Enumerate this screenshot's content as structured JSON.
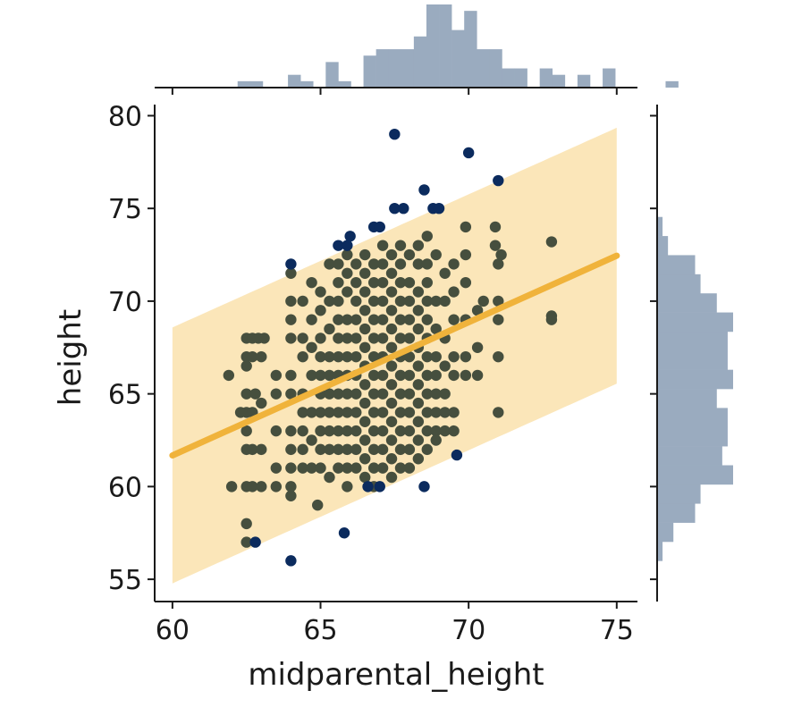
{
  "chart_data": {
    "type": "scatter",
    "subtype": "jointplot-with-regression",
    "xlabel": "midparental_height",
    "ylabel": "height",
    "xlim": [
      59.4,
      75.7
    ],
    "ylim": [
      53.8,
      80.6
    ],
    "xticks": [
      60,
      65,
      70,
      75
    ],
    "yticks": [
      55,
      60,
      65,
      70,
      75,
      80
    ],
    "grid": false,
    "colors": {
      "inside_band_points": "#464f3e",
      "outlier_points": "#0b2b5e",
      "regression_line": "#f0b33b",
      "prediction_band": "#fbe6b9",
      "marginal_hist": "#9aabbf"
    },
    "regression": {
      "slope": 0.718,
      "intercept": 18.6,
      "x_range": [
        60,
        75
      ],
      "band_half_width": 6.9
    },
    "outliers": [
      {
        "x": 67.5,
        "y": 79.0
      },
      {
        "x": 70.0,
        "y": 78.0
      },
      {
        "x": 71.0,
        "y": 76.5
      },
      {
        "x": 68.5,
        "y": 76.0
      },
      {
        "x": 67.5,
        "y": 75.0
      },
      {
        "x": 67.8,
        "y": 75.0
      },
      {
        "x": 68.8,
        "y": 75.0
      },
      {
        "x": 69.0,
        "y": 75.0
      },
      {
        "x": 66.0,
        "y": 73.5
      },
      {
        "x": 65.6,
        "y": 73.0
      },
      {
        "x": 65.9,
        "y": 73.0
      },
      {
        "x": 66.8,
        "y": 74.0
      },
      {
        "x": 67.0,
        "y": 74.0
      },
      {
        "x": 64.0,
        "y": 72.0
      },
      {
        "x": 64.0,
        "y": 56.0
      },
      {
        "x": 65.8,
        "y": 57.5
      },
      {
        "x": 62.8,
        "y": 57.0
      },
      {
        "x": 66.6,
        "y": 60.0
      },
      {
        "x": 67.0,
        "y": 60.0
      },
      {
        "x": 68.5,
        "y": 60.0
      },
      {
        "x": 69.6,
        "y": 61.7
      }
    ],
    "inliers": [
      {
        "x": 61.9,
        "y": 66.0
      },
      {
        "x": 62.0,
        "y": 60.0
      },
      {
        "x": 62.5,
        "y": 68.0
      },
      {
        "x": 62.7,
        "y": 68.0
      },
      {
        "x": 62.9,
        "y": 68.0
      },
      {
        "x": 63.1,
        "y": 68.0
      },
      {
        "x": 62.5,
        "y": 67.0
      },
      {
        "x": 62.7,
        "y": 67.0
      },
      {
        "x": 63.0,
        "y": 67.0
      },
      {
        "x": 62.5,
        "y": 66.5
      },
      {
        "x": 62.5,
        "y": 65.0
      },
      {
        "x": 62.8,
        "y": 65.0
      },
      {
        "x": 62.5,
        "y": 64.0
      },
      {
        "x": 62.7,
        "y": 64.0
      },
      {
        "x": 62.5,
        "y": 63.0
      },
      {
        "x": 62.5,
        "y": 62.0
      },
      {
        "x": 62.7,
        "y": 62.0
      },
      {
        "x": 62.5,
        "y": 60.0
      },
      {
        "x": 62.7,
        "y": 60.0
      },
      {
        "x": 62.5,
        "y": 58.0
      },
      {
        "x": 62.5,
        "y": 57.0
      },
      {
        "x": 63.0,
        "y": 64.5
      },
      {
        "x": 63.0,
        "y": 62.0
      },
      {
        "x": 63.0,
        "y": 60.0
      },
      {
        "x": 63.5,
        "y": 66.0
      },
      {
        "x": 63.5,
        "y": 65.0
      },
      {
        "x": 63.5,
        "y": 63.0
      },
      {
        "x": 63.5,
        "y": 61.0
      },
      {
        "x": 63.5,
        "y": 60.0
      },
      {
        "x": 64.0,
        "y": 71.5
      },
      {
        "x": 64.0,
        "y": 70.0
      },
      {
        "x": 64.0,
        "y": 69.0
      },
      {
        "x": 64.0,
        "y": 68.0
      },
      {
        "x": 64.0,
        "y": 66.0
      },
      {
        "x": 64.0,
        "y": 65.0
      },
      {
        "x": 64.0,
        "y": 63.0
      },
      {
        "x": 64.0,
        "y": 62.0
      },
      {
        "x": 64.0,
        "y": 61.0
      },
      {
        "x": 64.0,
        "y": 60.0
      },
      {
        "x": 64.0,
        "y": 59.5
      },
      {
        "x": 64.4,
        "y": 70.0
      },
      {
        "x": 64.4,
        "y": 68.0
      },
      {
        "x": 64.4,
        "y": 67.0
      },
      {
        "x": 64.4,
        "y": 65.0
      },
      {
        "x": 64.4,
        "y": 64.0
      },
      {
        "x": 64.4,
        "y": 63.0
      },
      {
        "x": 64.4,
        "y": 62.0
      },
      {
        "x": 64.4,
        "y": 61.0
      },
      {
        "x": 64.7,
        "y": 71.0
      },
      {
        "x": 64.7,
        "y": 69.0
      },
      {
        "x": 64.7,
        "y": 67.5
      },
      {
        "x": 64.7,
        "y": 66.0
      },
      {
        "x": 64.7,
        "y": 64.0
      },
      {
        "x": 64.7,
        "y": 62.5
      },
      {
        "x": 64.7,
        "y": 61.0
      },
      {
        "x": 65.0,
        "y": 70.5
      },
      {
        "x": 65.0,
        "y": 69.5
      },
      {
        "x": 65.0,
        "y": 68.0
      },
      {
        "x": 65.0,
        "y": 67.0
      },
      {
        "x": 65.0,
        "y": 66.0
      },
      {
        "x": 65.0,
        "y": 65.0
      },
      {
        "x": 65.0,
        "y": 64.0
      },
      {
        "x": 65.0,
        "y": 63.0
      },
      {
        "x": 65.0,
        "y": 62.0
      },
      {
        "x": 65.0,
        "y": 61.0
      },
      {
        "x": 64.9,
        "y": 59.0
      },
      {
        "x": 65.3,
        "y": 72.0
      },
      {
        "x": 65.3,
        "y": 70.0
      },
      {
        "x": 65.3,
        "y": 68.5
      },
      {
        "x": 65.3,
        "y": 67.0
      },
      {
        "x": 65.3,
        "y": 66.0
      },
      {
        "x": 65.3,
        "y": 65.0
      },
      {
        "x": 65.3,
        "y": 64.0
      },
      {
        "x": 65.3,
        "y": 63.0
      },
      {
        "x": 65.3,
        "y": 62.0
      },
      {
        "x": 65.3,
        "y": 60.5
      },
      {
        "x": 65.6,
        "y": 72.0
      },
      {
        "x": 65.6,
        "y": 71.0
      },
      {
        "x": 65.6,
        "y": 70.0
      },
      {
        "x": 65.6,
        "y": 69.0
      },
      {
        "x": 65.6,
        "y": 68.0
      },
      {
        "x": 65.6,
        "y": 67.0
      },
      {
        "x": 65.6,
        "y": 66.0
      },
      {
        "x": 65.6,
        "y": 65.0
      },
      {
        "x": 65.6,
        "y": 64.0
      },
      {
        "x": 65.6,
        "y": 63.0
      },
      {
        "x": 65.6,
        "y": 62.0
      },
      {
        "x": 65.6,
        "y": 61.0
      },
      {
        "x": 65.9,
        "y": 72.5
      },
      {
        "x": 65.9,
        "y": 71.5
      },
      {
        "x": 65.9,
        "y": 70.5
      },
      {
        "x": 65.9,
        "y": 69.0
      },
      {
        "x": 65.9,
        "y": 68.0
      },
      {
        "x": 65.9,
        "y": 67.0
      },
      {
        "x": 65.9,
        "y": 66.0
      },
      {
        "x": 65.9,
        "y": 65.0
      },
      {
        "x": 65.9,
        "y": 64.0
      },
      {
        "x": 65.9,
        "y": 63.0
      },
      {
        "x": 65.9,
        "y": 62.0
      },
      {
        "x": 65.9,
        "y": 61.0
      },
      {
        "x": 65.9,
        "y": 60.0
      },
      {
        "x": 66.2,
        "y": 72.0
      },
      {
        "x": 66.2,
        "y": 71.0
      },
      {
        "x": 66.2,
        "y": 70.0
      },
      {
        "x": 66.2,
        "y": 69.0
      },
      {
        "x": 66.2,
        "y": 68.0
      },
      {
        "x": 66.2,
        "y": 67.0
      },
      {
        "x": 66.2,
        "y": 66.0
      },
      {
        "x": 66.2,
        "y": 65.0
      },
      {
        "x": 66.2,
        "y": 64.0
      },
      {
        "x": 66.2,
        "y": 63.0
      },
      {
        "x": 66.2,
        "y": 62.0
      },
      {
        "x": 66.2,
        "y": 61.0
      },
      {
        "x": 66.5,
        "y": 72.5
      },
      {
        "x": 66.5,
        "y": 71.5
      },
      {
        "x": 66.5,
        "y": 70.5
      },
      {
        "x": 66.5,
        "y": 69.5
      },
      {
        "x": 66.5,
        "y": 68.5
      },
      {
        "x": 66.5,
        "y": 67.5
      },
      {
        "x": 66.5,
        "y": 66.5
      },
      {
        "x": 66.5,
        "y": 65.5
      },
      {
        "x": 66.5,
        "y": 64.5
      },
      {
        "x": 66.5,
        "y": 63.5
      },
      {
        "x": 66.5,
        "y": 62.5
      },
      {
        "x": 66.5,
        "y": 61.5
      },
      {
        "x": 66.5,
        "y": 60.5
      },
      {
        "x": 66.8,
        "y": 72.0
      },
      {
        "x": 66.8,
        "y": 71.0
      },
      {
        "x": 66.8,
        "y": 70.0
      },
      {
        "x": 66.8,
        "y": 69.0
      },
      {
        "x": 66.8,
        "y": 68.0
      },
      {
        "x": 66.8,
        "y": 67.0
      },
      {
        "x": 66.8,
        "y": 66.0
      },
      {
        "x": 66.8,
        "y": 65.0
      },
      {
        "x": 66.8,
        "y": 64.0
      },
      {
        "x": 66.8,
        "y": 63.0
      },
      {
        "x": 66.8,
        "y": 62.0
      },
      {
        "x": 66.8,
        "y": 61.0
      },
      {
        "x": 66.8,
        "y": 60.0
      },
      {
        "x": 67.1,
        "y": 73.0
      },
      {
        "x": 67.1,
        "y": 72.0
      },
      {
        "x": 67.1,
        "y": 71.0
      },
      {
        "x": 67.1,
        "y": 70.0
      },
      {
        "x": 67.1,
        "y": 69.0
      },
      {
        "x": 67.1,
        "y": 68.0
      },
      {
        "x": 67.1,
        "y": 67.0
      },
      {
        "x": 67.1,
        "y": 66.0
      },
      {
        "x": 67.1,
        "y": 65.0
      },
      {
        "x": 67.1,
        "y": 64.0
      },
      {
        "x": 67.1,
        "y": 63.0
      },
      {
        "x": 67.1,
        "y": 62.0
      },
      {
        "x": 67.1,
        "y": 61.0
      },
      {
        "x": 67.4,
        "y": 72.5
      },
      {
        "x": 67.4,
        "y": 71.5
      },
      {
        "x": 67.4,
        "y": 70.5
      },
      {
        "x": 67.4,
        "y": 69.5
      },
      {
        "x": 67.4,
        "y": 68.5
      },
      {
        "x": 67.4,
        "y": 67.5
      },
      {
        "x": 67.4,
        "y": 66.5
      },
      {
        "x": 67.4,
        "y": 65.5
      },
      {
        "x": 67.4,
        "y": 64.5
      },
      {
        "x": 67.4,
        "y": 63.5
      },
      {
        "x": 67.4,
        "y": 62.5
      },
      {
        "x": 67.4,
        "y": 61.5
      },
      {
        "x": 67.4,
        "y": 60.5
      },
      {
        "x": 67.7,
        "y": 73.0
      },
      {
        "x": 67.7,
        "y": 72.0
      },
      {
        "x": 67.7,
        "y": 71.0
      },
      {
        "x": 67.7,
        "y": 70.0
      },
      {
        "x": 67.7,
        "y": 69.0
      },
      {
        "x": 67.7,
        "y": 68.0
      },
      {
        "x": 67.7,
        "y": 67.0
      },
      {
        "x": 67.7,
        "y": 66.0
      },
      {
        "x": 67.7,
        "y": 65.0
      },
      {
        "x": 67.7,
        "y": 64.0
      },
      {
        "x": 67.7,
        "y": 63.0
      },
      {
        "x": 67.7,
        "y": 62.0
      },
      {
        "x": 67.7,
        "y": 61.0
      },
      {
        "x": 68.0,
        "y": 72.5
      },
      {
        "x": 68.0,
        "y": 71.0
      },
      {
        "x": 68.0,
        "y": 70.0
      },
      {
        "x": 68.0,
        "y": 69.0
      },
      {
        "x": 68.0,
        "y": 68.0
      },
      {
        "x": 68.0,
        "y": 67.0
      },
      {
        "x": 68.0,
        "y": 66.0
      },
      {
        "x": 68.0,
        "y": 65.0
      },
      {
        "x": 68.0,
        "y": 64.0
      },
      {
        "x": 68.0,
        "y": 63.0
      },
      {
        "x": 68.0,
        "y": 62.0
      },
      {
        "x": 68.0,
        "y": 61.0
      },
      {
        "x": 68.3,
        "y": 73.0
      },
      {
        "x": 68.3,
        "y": 72.0
      },
      {
        "x": 68.3,
        "y": 70.5
      },
      {
        "x": 68.3,
        "y": 69.5
      },
      {
        "x": 68.3,
        "y": 68.5
      },
      {
        "x": 68.3,
        "y": 67.5
      },
      {
        "x": 68.3,
        "y": 66.5
      },
      {
        "x": 68.3,
        "y": 65.5
      },
      {
        "x": 68.3,
        "y": 64.5
      },
      {
        "x": 68.3,
        "y": 63.5
      },
      {
        "x": 68.3,
        "y": 62.5
      },
      {
        "x": 68.3,
        "y": 61.5
      },
      {
        "x": 68.6,
        "y": 73.5
      },
      {
        "x": 68.6,
        "y": 72.0
      },
      {
        "x": 68.6,
        "y": 71.0
      },
      {
        "x": 68.6,
        "y": 70.0
      },
      {
        "x": 68.6,
        "y": 69.0
      },
      {
        "x": 68.6,
        "y": 68.0
      },
      {
        "x": 68.6,
        "y": 67.0
      },
      {
        "x": 68.6,
        "y": 66.0
      },
      {
        "x": 68.6,
        "y": 65.0
      },
      {
        "x": 68.6,
        "y": 64.0
      },
      {
        "x": 68.6,
        "y": 63.0
      },
      {
        "x": 68.6,
        "y": 62.0
      },
      {
        "x": 68.9,
        "y": 72.5
      },
      {
        "x": 68.9,
        "y": 70.0
      },
      {
        "x": 68.9,
        "y": 68.5
      },
      {
        "x": 68.9,
        "y": 67.0
      },
      {
        "x": 68.9,
        "y": 66.0
      },
      {
        "x": 68.9,
        "y": 65.0
      },
      {
        "x": 68.9,
        "y": 64.0
      },
      {
        "x": 68.9,
        "y": 63.0
      },
      {
        "x": 68.9,
        "y": 62.5
      },
      {
        "x": 69.2,
        "y": 71.5
      },
      {
        "x": 69.2,
        "y": 70.0
      },
      {
        "x": 69.2,
        "y": 68.0
      },
      {
        "x": 69.2,
        "y": 66.5
      },
      {
        "x": 69.2,
        "y": 65.0
      },
      {
        "x": 69.2,
        "y": 64.0
      },
      {
        "x": 69.2,
        "y": 63.0
      },
      {
        "x": 69.5,
        "y": 72.0
      },
      {
        "x": 69.5,
        "y": 70.5
      },
      {
        "x": 69.5,
        "y": 69.0
      },
      {
        "x": 69.5,
        "y": 67.0
      },
      {
        "x": 69.5,
        "y": 66.0
      },
      {
        "x": 69.5,
        "y": 64.0
      },
      {
        "x": 69.5,
        "y": 63.0
      },
      {
        "x": 69.9,
        "y": 74.0
      },
      {
        "x": 69.9,
        "y": 72.5
      },
      {
        "x": 69.9,
        "y": 71.0
      },
      {
        "x": 69.9,
        "y": 69.0
      },
      {
        "x": 69.9,
        "y": 67.0
      },
      {
        "x": 69.9,
        "y": 66.0
      },
      {
        "x": 70.3,
        "y": 69.5
      },
      {
        "x": 70.3,
        "y": 67.5
      },
      {
        "x": 70.3,
        "y": 66.0
      },
      {
        "x": 70.5,
        "y": 70.0
      },
      {
        "x": 70.9,
        "y": 74.0
      },
      {
        "x": 70.9,
        "y": 73.0
      },
      {
        "x": 71.0,
        "y": 72.0
      },
      {
        "x": 71.0,
        "y": 70.0
      },
      {
        "x": 71.0,
        "y": 69.0
      },
      {
        "x": 71.0,
        "y": 67.0
      },
      {
        "x": 71.0,
        "y": 64.0
      },
      {
        "x": 71.1,
        "y": 72.5
      },
      {
        "x": 72.8,
        "y": 73.2
      },
      {
        "x": 72.8,
        "y": 69.2
      },
      {
        "x": 72.8,
        "y": 69.0
      },
      {
        "x": 62.3,
        "y": 64.0
      }
    ],
    "marginal_x": {
      "bin_start": 62.2,
      "bin_width": 0.425,
      "counts": [
        1,
        1,
        0,
        0,
        2,
        1,
        0,
        4,
        1,
        0,
        5,
        6,
        6,
        6,
        8,
        13,
        13,
        9,
        12,
        6,
        6,
        3,
        3,
        0,
        3,
        2,
        0,
        2,
        0,
        3,
        0,
        0,
        0,
        0,
        1
      ]
    },
    "marginal_y": {
      "bin_start": 56.0,
      "bin_width": 1.03,
      "counts": [
        1,
        3,
        7,
        8,
        14,
        12,
        13,
        13,
        11,
        14,
        13,
        13,
        14,
        11,
        8,
        7,
        2,
        1,
        0,
        0
      ]
    }
  }
}
